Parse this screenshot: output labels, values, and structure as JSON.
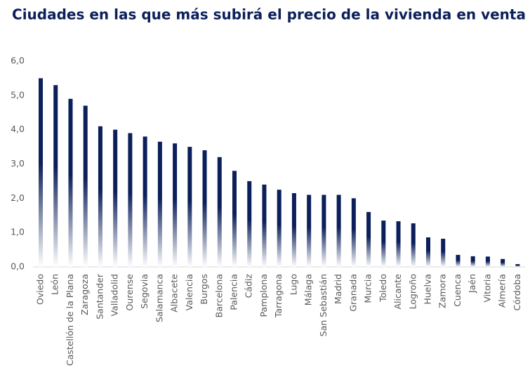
{
  "chart_data": {
    "type": "bar",
    "title": "Ciudades en las que más subirá el precio de la vivienda en venta",
    "categories": [
      "Oviedo",
      "León",
      "Castellón de la Plana",
      "Zaragoza",
      "Santander",
      "Valladolid",
      "Ourense",
      "Segovia",
      "Salamanca",
      "Albacete",
      "Valencia",
      "Burgos",
      "Barcelona",
      "Palencia",
      "Cádiz",
      "Pamplona",
      "Tarragona",
      "Lugo",
      "Málaga",
      "San Sebastián",
      "Madrid",
      "Granada",
      "Murcia",
      "Toledo",
      "Alicante",
      "Logroño",
      "Huelva",
      "Zamora",
      "Cuenca",
      "Jaén",
      "Vitoria",
      "Almería",
      "Córdoba"
    ],
    "values": [
      5.5,
      5.3,
      4.9,
      4.7,
      4.1,
      4.0,
      3.9,
      3.8,
      3.65,
      3.6,
      3.5,
      3.4,
      3.2,
      2.8,
      2.5,
      2.4,
      2.25,
      2.15,
      2.1,
      2.1,
      2.1,
      2.0,
      1.6,
      1.35,
      1.33,
      1.27,
      0.86,
      0.82,
      0.35,
      0.31,
      0.3,
      0.23,
      0.08
    ],
    "color": "#0b1f5a",
    "ylim": [
      0,
      6
    ],
    "yticks": [
      {
        "value": 0,
        "label": "0,0"
      },
      {
        "value": 1,
        "label": "1,0"
      },
      {
        "value": 2,
        "label": "2,0"
      },
      {
        "value": 3,
        "label": "3,0"
      },
      {
        "value": 4,
        "label": "4,0"
      },
      {
        "value": 5,
        "label": "5,0"
      },
      {
        "value": 6,
        "label": "6,0"
      }
    ],
    "grid": false
  }
}
